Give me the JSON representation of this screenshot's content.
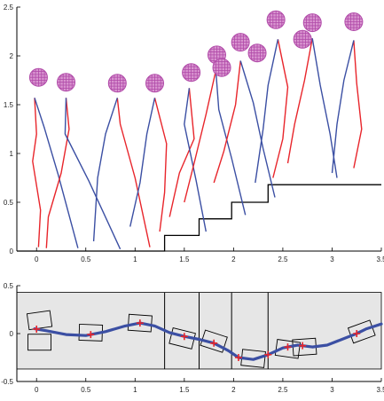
{
  "chart_data": [
    {
      "type": "line",
      "title": "",
      "xlabel": "",
      "ylabel": "",
      "xlim": [
        -0.2,
        3.5
      ],
      "ylim": [
        0,
        2.5
      ],
      "x_tick_labels": [
        "0",
        "0.5",
        "1",
        "1.5",
        "2",
        "2.5",
        "3",
        "3.5"
      ],
      "x_tick_values": [
        0,
        0.5,
        1,
        1.5,
        2,
        2.5,
        3,
        3.5
      ],
      "y_tick_labels": [
        "0",
        "0.5",
        "1",
        "1.5",
        "2",
        "2.5"
      ],
      "y_tick_values": [
        0,
        0.5,
        1,
        1.5,
        2,
        2.5
      ],
      "colors": {
        "right_leg": "#e8252b",
        "left_leg": "#3b4fa3",
        "terrain": "#000000",
        "head": "#b04aa8"
      },
      "terrain": {
        "x": [
          -0.2,
          1.3,
          1.3,
          1.65,
          1.65,
          1.98,
          1.98,
          2.35,
          2.35,
          3.5
        ],
        "y": [
          0,
          0,
          0.16,
          0.16,
          0.33,
          0.33,
          0.5,
          0.5,
          0.68,
          0.68
        ]
      },
      "heads": [
        {
          "x": 0.02,
          "y": 1.78
        },
        {
          "x": 0.3,
          "y": 1.73
        },
        {
          "x": 0.82,
          "y": 1.72
        },
        {
          "x": 1.2,
          "y": 1.72
        },
        {
          "x": 1.57,
          "y": 1.83
        },
        {
          "x": 1.83,
          "y": 2.01
        },
        {
          "x": 1.88,
          "y": 1.88
        },
        {
          "x": 2.07,
          "y": 2.14
        },
        {
          "x": 2.24,
          "y": 2.03
        },
        {
          "x": 2.43,
          "y": 2.37
        },
        {
          "x": 2.7,
          "y": 2.17
        },
        {
          "x": 2.8,
          "y": 2.34
        },
        {
          "x": 3.22,
          "y": 2.35
        }
      ],
      "series": [
        {
          "x": [
            -0.02,
            0.0,
            -0.04,
            0.04,
            0.02
          ],
          "y": [
            1.57,
            1.2,
            0.92,
            0.42,
            0.04
          ]
        },
        {
          "x": [
            -0.02,
            0.08,
            0.22,
            0.42
          ],
          "y": [
            1.57,
            1.26,
            0.78,
            0.03
          ]
        },
        {
          "x": [
            0.3,
            0.33,
            0.25,
            0.12,
            0.1
          ],
          "y": [
            1.57,
            1.25,
            0.8,
            0.35,
            0.03
          ]
        },
        {
          "x": [
            0.3,
            0.29,
            0.53,
            0.85
          ],
          "y": [
            1.57,
            1.2,
            0.72,
            0.02
          ]
        },
        {
          "x": [
            0.82,
            0.85,
            1.0,
            1.15
          ],
          "y": [
            1.57,
            1.3,
            0.75,
            0.04
          ]
        },
        {
          "x": [
            0.82,
            0.7,
            0.62,
            0.58
          ],
          "y": [
            1.57,
            1.2,
            0.75,
            0.1
          ]
        },
        {
          "x": [
            1.2,
            1.32,
            1.3,
            1.25
          ],
          "y": [
            1.57,
            1.1,
            0.6,
            0.2
          ]
        },
        {
          "x": [
            1.2,
            1.12,
            1.05,
            0.95
          ],
          "y": [
            1.57,
            1.2,
            0.7,
            0.25
          ]
        },
        {
          "x": [
            1.55,
            1.6,
            1.45,
            1.35
          ],
          "y": [
            1.67,
            1.15,
            0.8,
            0.35
          ]
        },
        {
          "x": [
            1.55,
            1.5,
            1.62,
            1.72
          ],
          "y": [
            1.67,
            1.3,
            0.72,
            0.2
          ]
        },
        {
          "x": [
            1.82,
            1.72,
            1.6,
            1.5
          ],
          "y": [
            1.85,
            1.4,
            0.9,
            0.5
          ]
        },
        {
          "x": [
            1.82,
            1.85,
            1.98,
            2.12
          ],
          "y": [
            1.85,
            1.45,
            0.95,
            0.37
          ]
        },
        {
          "x": [
            2.07,
            2.02,
            1.9,
            1.8
          ],
          "y": [
            1.95,
            1.5,
            1.02,
            0.7
          ]
        },
        {
          "x": [
            2.07,
            2.2,
            2.3,
            2.42
          ],
          "y": [
            1.95,
            1.52,
            1.05,
            0.55
          ]
        },
        {
          "x": [
            2.45,
            2.55,
            2.5,
            2.4
          ],
          "y": [
            2.17,
            1.68,
            1.15,
            0.75
          ]
        },
        {
          "x": [
            2.45,
            2.35,
            2.3,
            2.22
          ],
          "y": [
            2.17,
            1.7,
            1.25,
            0.7
          ]
        },
        {
          "x": [
            2.8,
            2.72,
            2.62,
            2.55
          ],
          "y": [
            2.18,
            1.75,
            1.3,
            0.9
          ]
        },
        {
          "x": [
            2.8,
            2.88,
            2.98,
            3.05
          ],
          "y": [
            2.18,
            1.7,
            1.2,
            0.75
          ]
        },
        {
          "x": [
            3.22,
            3.25,
            3.3,
            3.22
          ],
          "y": [
            2.16,
            1.72,
            1.25,
            0.85
          ]
        },
        {
          "x": [
            3.22,
            3.12,
            3.05,
            3.0
          ],
          "y": [
            2.16,
            1.75,
            1.3,
            0.8
          ]
        }
      ]
    },
    {
      "type": "line",
      "title": "",
      "xlabel": "",
      "ylabel": "",
      "xlim": [
        -0.2,
        3.5
      ],
      "ylim": [
        -0.5,
        0.5
      ],
      "x_tick_labels": [
        "0",
        "0.5",
        "1",
        "1.5",
        "2",
        "2.5",
        "3",
        "3.5"
      ],
      "x_tick_values": [
        0,
        0.5,
        1,
        1.5,
        2,
        2.5,
        3,
        3.5
      ],
      "y_tick_labels": [
        "-0.5",
        "0",
        "0.5"
      ],
      "y_tick_values": [
        -0.5,
        0,
        0.5
      ],
      "colors": {
        "trajectory": "#3b4fa3",
        "markers": "#e8252b",
        "band": "#e6e6e6",
        "boxes": "#000000"
      },
      "band": {
        "ymin": -0.37,
        "ymax": 0.43
      },
      "dividers_x": [
        1.3,
        1.65,
        1.98,
        2.35
      ],
      "trajectory": {
        "x": [
          -0.02,
          0.1,
          0.3,
          0.5,
          0.7,
          0.9,
          1.05,
          1.2,
          1.35,
          1.5,
          1.65,
          1.8,
          1.95,
          2.05,
          2.2,
          2.35,
          2.5,
          2.65,
          2.8,
          2.95,
          3.1,
          3.25,
          3.35,
          3.5
        ],
        "y": [
          0.05,
          0.03,
          -0.01,
          -0.02,
          0.02,
          0.08,
          0.11,
          0.08,
          0.01,
          -0.03,
          -0.06,
          -0.1,
          -0.18,
          -0.25,
          -0.27,
          -0.22,
          -0.15,
          -0.12,
          -0.14,
          -0.12,
          -0.06,
          0.0,
          0.05,
          0.1
        ]
      },
      "markers_x": [
        0.0,
        0.55,
        1.05,
        1.5,
        1.8,
        2.05,
        2.35,
        2.55,
        2.7,
        3.25
      ],
      "footprints": [
        {
          "x": 0.03,
          "y": 0.14,
          "angle": -8
        },
        {
          "x": 0.03,
          "y": -0.09,
          "angle": 0
        },
        {
          "x": 0.55,
          "y": 0.01,
          "angle": 2
        },
        {
          "x": 1.05,
          "y": 0.11,
          "angle": 4
        },
        {
          "x": 1.48,
          "y": -0.05,
          "angle": 14
        },
        {
          "x": 1.8,
          "y": -0.08,
          "angle": 18
        },
        {
          "x": 2.2,
          "y": -0.26,
          "angle": 6
        },
        {
          "x": 2.55,
          "y": -0.16,
          "angle": 8
        },
        {
          "x": 2.72,
          "y": -0.14,
          "angle": -4
        },
        {
          "x": 3.3,
          "y": 0.02,
          "angle": -20
        }
      ]
    }
  ]
}
